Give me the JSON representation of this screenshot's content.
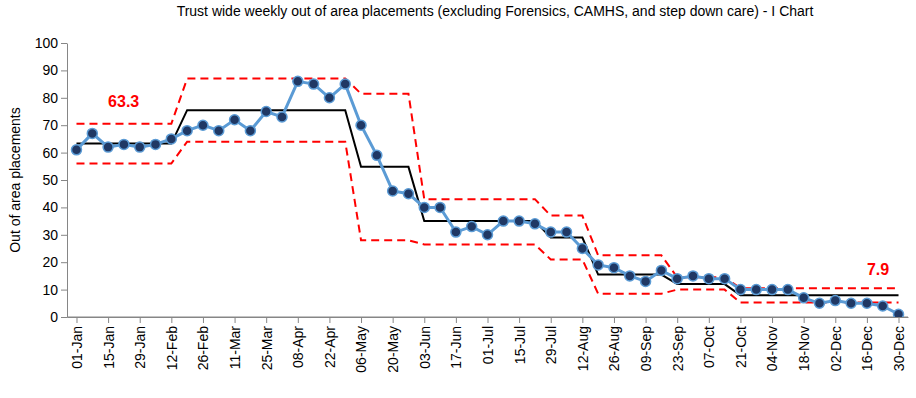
{
  "chart_data": {
    "type": "line",
    "title": "Trust wide weekly out of area placements (excluding Forensics, CAMHS, and step down care) - I Chart",
    "y_label": "Out of area placements",
    "categories": [
      "01-Jan",
      null,
      "15-Jan",
      null,
      "29-Jan",
      null,
      "12-Feb",
      null,
      "26-Feb",
      null,
      "11-Mar",
      null,
      "25-Mar",
      null,
      "08-Apr",
      null,
      "22-Apr",
      null,
      "06-May",
      null,
      "20-May",
      null,
      "03-Jun",
      null,
      "17-Jun",
      null,
      "01-Jul",
      null,
      "15-Jul",
      null,
      "29-Jul",
      null,
      "12-Aug",
      null,
      "26-Aug",
      null,
      "09-Sep",
      null,
      "23-Sep",
      null,
      "07-Oct",
      null,
      "21-Oct",
      null,
      "04-Nov",
      null,
      "18-Nov",
      null,
      "02-Dec",
      null,
      "16-Dec",
      null,
      "30-Dec"
    ],
    "series": [
      {
        "color": "#5b9bd5",
        "marker": "circle",
        "line_style": "solid",
        "values": [
          61,
          67,
          62,
          63,
          62,
          63,
          65,
          68,
          70,
          68,
          72,
          68,
          75,
          73,
          86,
          85,
          80,
          85,
          70,
          59,
          46,
          45,
          40,
          40,
          31,
          33,
          30,
          35,
          35,
          34,
          31,
          31,
          25,
          19,
          18,
          15,
          13,
          17,
          14,
          15,
          14,
          14,
          10,
          10,
          10,
          10,
          7,
          5,
          6,
          5,
          5,
          4,
          1
        ]
      },
      {
        "color": "#000000",
        "marker": "none",
        "line_style": "solid",
        "values": [
          63.3,
          63.3,
          63.3,
          63.3,
          63.3,
          63.3,
          63.3,
          75.5,
          75.5,
          75.5,
          75.5,
          75.5,
          75.5,
          75.5,
          75.5,
          75.5,
          75.5,
          75.5,
          54.8,
          54.8,
          54.8,
          54.8,
          35,
          35,
          35,
          35,
          35,
          35,
          35,
          35,
          29,
          29,
          29,
          15.5,
          15.5,
          15.5,
          15.5,
          15.5,
          12,
          12,
          12,
          12,
          7.9,
          7.9,
          7.9,
          7.9,
          7.9,
          7.9,
          7.9,
          7.9,
          7.9,
          7.9,
          7.9
        ]
      },
      {
        "color": "#ff0000",
        "marker": "none",
        "line_style": "dashed",
        "values": [
          70.5,
          70.5,
          70.5,
          70.5,
          70.5,
          70.5,
          70.5,
          87,
          87,
          87,
          87,
          87,
          87,
          87,
          87,
          87,
          87,
          87,
          81.5,
          81.5,
          81.5,
          81.5,
          43,
          43,
          43,
          43,
          43,
          43,
          43,
          43,
          37,
          37,
          37,
          22.5,
          22.5,
          22.5,
          22.5,
          22.5,
          14.5,
          14.5,
          14.5,
          14.5,
          10.5,
          10.5,
          10.5,
          10.5,
          10.5,
          10.5,
          10.5,
          10.5,
          10.5,
          10.5,
          10.5
        ]
      },
      {
        "color": "#ff0000",
        "marker": "none",
        "line_style": "dashed",
        "values": [
          56,
          56,
          56,
          56,
          56,
          56,
          56,
          64,
          64,
          64,
          64,
          64,
          64,
          64,
          64,
          64,
          64,
          64,
          28,
          28,
          28,
          28,
          26.5,
          26.5,
          26.5,
          26.5,
          26.5,
          26.5,
          26.5,
          26.5,
          21,
          21,
          21,
          8.5,
          8.5,
          8.5,
          8.5,
          8.5,
          10,
          10,
          10,
          10,
          5.3,
          5.3,
          5.3,
          5.3,
          5.3,
          5.3,
          5.3,
          5.3,
          5.3,
          5.3,
          5.3
        ]
      }
    ],
    "ylim": [
      0,
      100
    ],
    "yticks": [
      0,
      10,
      20,
      30,
      40,
      50,
      60,
      70,
      80,
      90,
      100
    ],
    "grid": false,
    "annotations": [
      {
        "text": "63.3",
        "x": "15-Jan",
        "y": 78,
        "color": "#ff0000"
      },
      {
        "text": "7.9",
        "x": "16-Dec",
        "y": 17,
        "color": "#ff0000"
      }
    ]
  }
}
